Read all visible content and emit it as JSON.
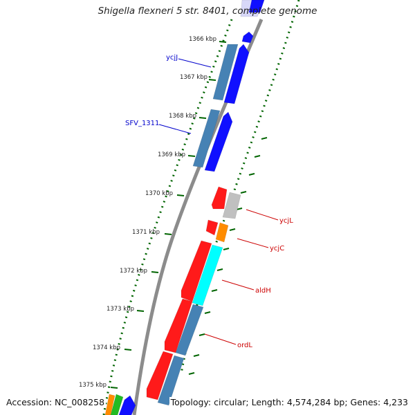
{
  "title": "Shigella flexneri 5 str. 8401, complete genome",
  "footer": {
    "accession": "Accession: NC_008258",
    "summary": "Topology: circular; Length: 4,574,284 bp; Genes: 4,233"
  },
  "colors": {
    "backbone": "#8c8c8c",
    "tick": "#006400",
    "forward_gene": "#1010ff",
    "reverse_gene": "#ff1a1a",
    "steelblue": "#4682b4",
    "gray": "#c0c0c0",
    "orange": "#ff8c00",
    "cyan": "#00ffff",
    "green": "#22bb22",
    "label_blue": "#0000cc",
    "label_red": "#cc0000"
  },
  "ruler": [
    {
      "label": "1366 kbp"
    },
    {
      "label": "1367 kbp"
    },
    {
      "label": "1368 kbp"
    },
    {
      "label": "1369 kbp"
    },
    {
      "label": "1370 kbp"
    },
    {
      "label": "1371 kbp"
    },
    {
      "label": "1372 kbp"
    },
    {
      "label": "1373 kbp"
    },
    {
      "label": "1374 kbp"
    },
    {
      "label": "1375 kbp"
    }
  ],
  "gene_labels": [
    {
      "text": "ycjJ",
      "color": "blue"
    },
    {
      "text": "SFV_1311",
      "color": "blue"
    },
    {
      "text": "ycjL",
      "color": "red"
    },
    {
      "text": "ycjC",
      "color": "red"
    },
    {
      "text": "aldH",
      "color": "red"
    },
    {
      "text": "ordL",
      "color": "red"
    }
  ]
}
